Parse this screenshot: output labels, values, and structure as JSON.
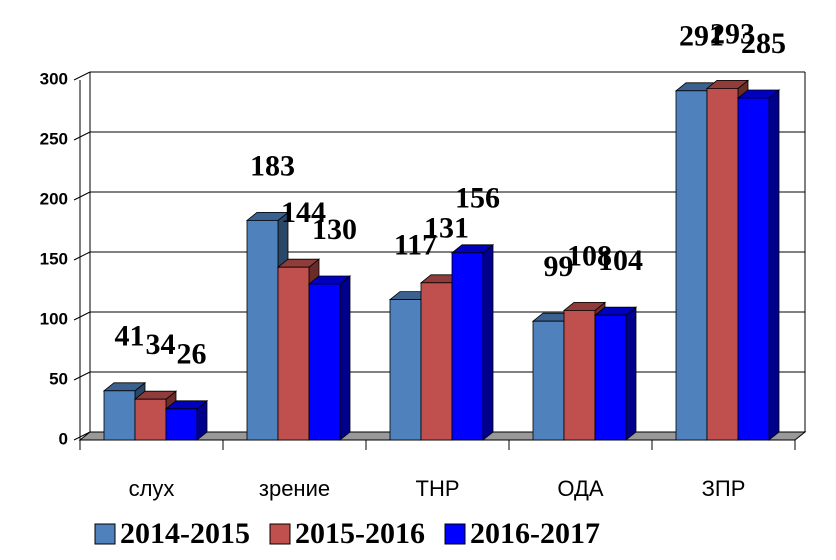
{
  "chart_data": {
    "type": "bar3d",
    "categories": [
      "слух",
      "зрение",
      "ТНР",
      "ОДА",
      "ЗПР"
    ],
    "series": [
      {
        "name": "2014-2015",
        "color": "#4f81bd",
        "values": [
          41,
          183,
          117,
          99,
          291
        ]
      },
      {
        "name": "2015-2016",
        "color": "#c0504d",
        "values": [
          34,
          144,
          131,
          108,
          293
        ]
      },
      {
        "name": "2016-2017",
        "color": "#0000ff",
        "values": [
          26,
          130,
          156,
          104,
          285
        ]
      }
    ],
    "ylim": [
      0,
      300
    ],
    "yticks": [
      0,
      50,
      100,
      150,
      200,
      250,
      300
    ],
    "grid": true,
    "legend": "bottom"
  }
}
